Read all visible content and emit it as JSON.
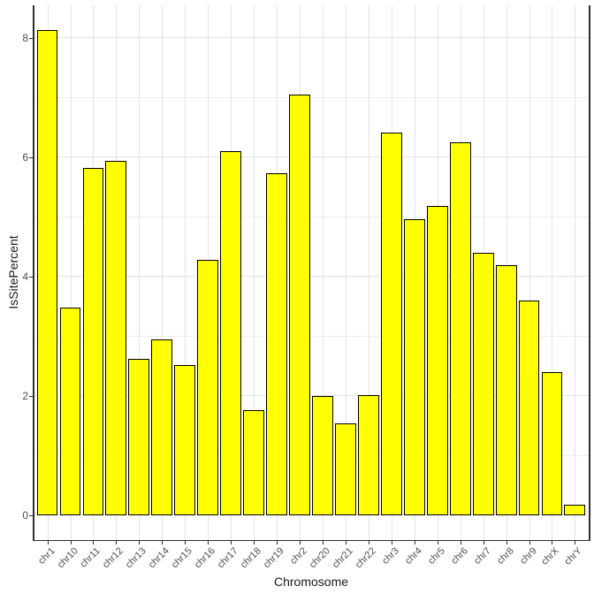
{
  "chart_data": {
    "type": "bar",
    "title": "",
    "xlabel": "Chromosome",
    "ylabel": "IsSitePercent",
    "categories": [
      "chr1",
      "chr10",
      "chr11",
      "chr12",
      "chr13",
      "chr14",
      "chr15",
      "chr16",
      "chr17",
      "chr18",
      "chr19",
      "chr2",
      "chr20",
      "chr21",
      "chr22",
      "chr3",
      "chr4",
      "chr5",
      "chr6",
      "chr7",
      "chr8",
      "chr9",
      "chrX",
      "chrY"
    ],
    "values": [
      8.13,
      3.49,
      5.83,
      5.94,
      2.62,
      2.95,
      2.52,
      4.29,
      6.1,
      1.77,
      5.74,
      7.06,
      2.0,
      1.55,
      2.02,
      6.42,
      4.97,
      5.19,
      6.26,
      4.4,
      4.2,
      3.61,
      2.41,
      0.19
    ],
    "yticks": [
      0,
      2,
      4,
      6,
      8
    ],
    "yticks_minor": [
      1,
      3,
      5,
      7
    ],
    "ylim": [
      -0.41,
      8.55
    ],
    "grid": "on",
    "legend": "none",
    "bar_fill": "#ffff00",
    "bar_stroke": "#000000",
    "colors": {
      "grid_major": "#e3e3e3",
      "grid_minor": "#eeeeee",
      "axis_line": "#2e2e2e",
      "tick_label": "#4d4d4d",
      "axis_title": "#1a1a1a",
      "panel_bg": "#ffffff",
      "figure_bg": "#ffffff"
    }
  }
}
